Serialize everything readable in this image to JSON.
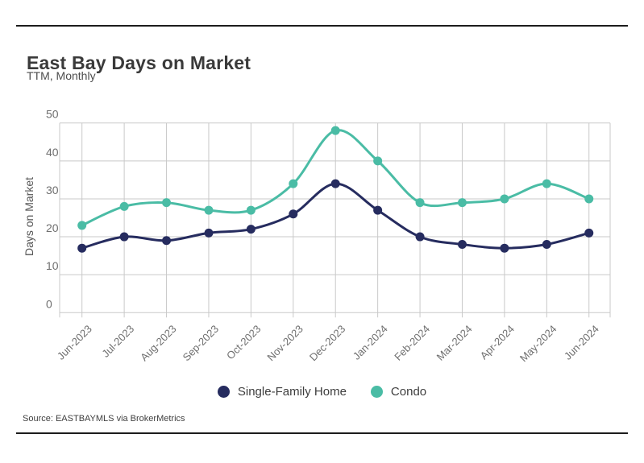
{
  "header": {
    "title": "East Bay Days on Market",
    "subtitle": "TTM, Monthly"
  },
  "source_line": "Source: EASTBAYMLS via BrokerMetrics",
  "chart_data": {
    "type": "line",
    "title": "East Bay Days on Market",
    "subtitle": "TTM, Monthly",
    "xlabel": "",
    "ylabel": "Days on Market",
    "x": [
      "Jun-2023",
      "Jul-2023",
      "Aug-2023",
      "Sep-2023",
      "Oct-2023",
      "Nov-2023",
      "Dec-2023",
      "Jan-2024",
      "Feb-2024",
      "Mar-2024",
      "Apr-2024",
      "May-2024",
      "Jun-2024"
    ],
    "series": [
      {
        "name": "Single-Family Home",
        "color": "#262c5f",
        "values": [
          17,
          20,
          19,
          21,
          22,
          26,
          34,
          27,
          20,
          18,
          17,
          18,
          21
        ]
      },
      {
        "name": "Condo",
        "color": "#4abca5",
        "values": [
          23,
          28,
          29,
          27,
          27,
          34,
          48,
          40,
          29,
          29,
          30,
          34,
          30
        ]
      }
    ],
    "ylim": [
      0,
      50
    ],
    "yticks": [
      0,
      10,
      20,
      30,
      40,
      50
    ],
    "grid": true,
    "smooth": true,
    "marker": "circle",
    "legend_position": "bottom",
    "colors": {
      "grid": "#c9c9c9",
      "tick_label": "#6f6f6f",
      "rule": "#1c1c1c"
    }
  }
}
